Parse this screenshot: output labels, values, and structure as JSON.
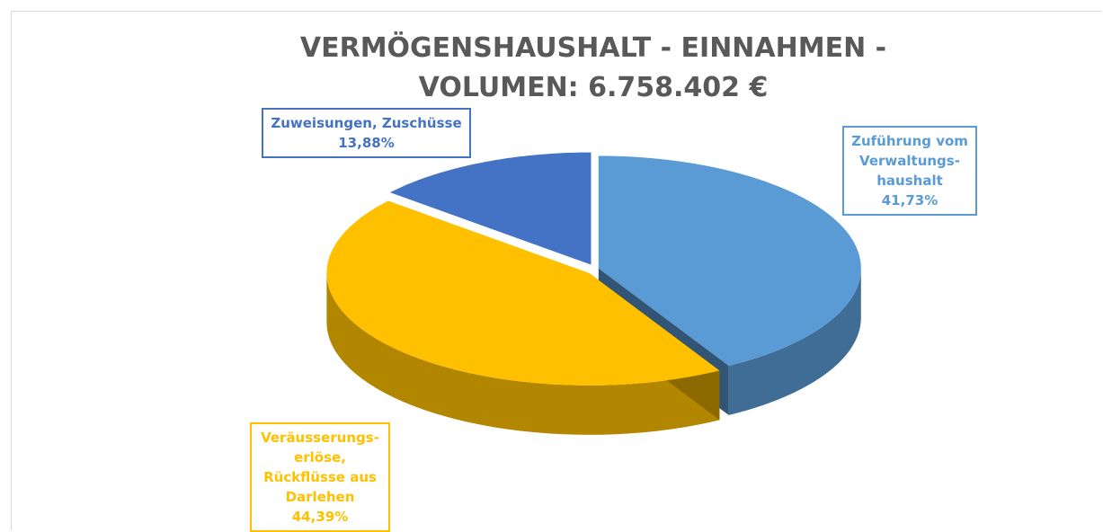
{
  "chart_data": {
    "type": "pie",
    "title": "VERMÖGENSHAUSHALT - EINNAHMEN - VOLUMEN: 6.758.402 €",
    "categories": [
      "Zuführung vom Verwaltungs-haushalt",
      "Veräusserungs-erlöse, Rückflüsse aus Darlehen",
      "Zuweisungen, Zuschüsse"
    ],
    "values": [
      41.73,
      44.39,
      13.88
    ],
    "value_labels": [
      "41,73%",
      "44,39%",
      "13,88%"
    ],
    "colors": [
      "#5b9bd5",
      "#ffc000",
      "#4472c4"
    ]
  }
}
